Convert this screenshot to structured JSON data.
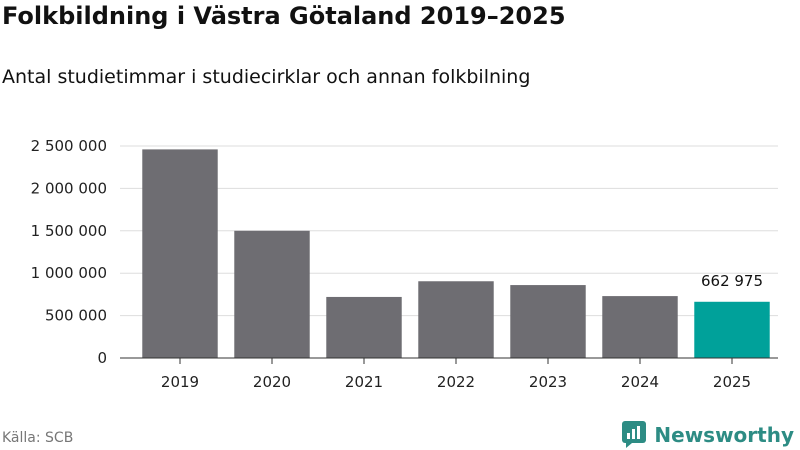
{
  "chart_data": {
    "type": "bar",
    "title": "Folkbildning i Västra Götaland 2019–2025",
    "subtitle": "Antal studietimmar i studiecirklar och annan folkbilning",
    "xlabel": "",
    "ylabel": "",
    "categories": [
      "2019",
      "2020",
      "2021",
      "2022",
      "2023",
      "2024",
      "2025"
    ],
    "values": [
      2460000,
      1500000,
      720000,
      905000,
      860000,
      730000,
      662975
    ],
    "ylim": [
      0,
      2500000
    ],
    "yticks": [
      0,
      500000,
      1000000,
      1500000,
      2000000,
      2500000
    ],
    "ytick_labels": [
      "0",
      "500 000",
      "1 000 000",
      "1 500 000",
      "2 000 000",
      "2 500 000"
    ],
    "grid": true,
    "highlight_index": 6,
    "data_labels": [
      {
        "index": 6,
        "text": "662 975"
      }
    ],
    "colors": {
      "bar": "#6e6d72",
      "highlight": "#00a19a",
      "grid": "#dddddd",
      "axis": "#333333"
    }
  },
  "footer": {
    "source": "Källa: SCB",
    "brand": "Newsworthy",
    "brand_icon": "newsworthy-logo-icon",
    "brand_color": "#2d8c84"
  }
}
